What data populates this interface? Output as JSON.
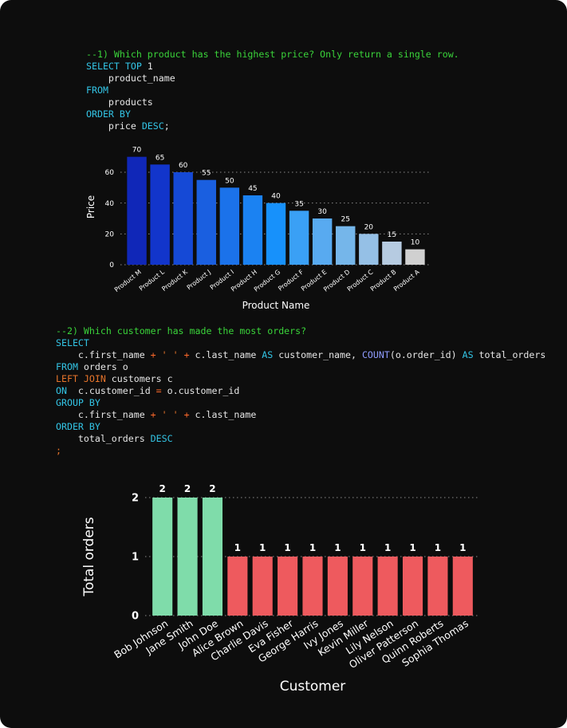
{
  "code_block_1": {
    "lines": [
      [
        {
          "t": "--1) Which product has the highest price? Only return a single row.",
          "c": "cm"
        }
      ],
      [
        {
          "t": "SELECT TOP ",
          "c": "kw"
        },
        {
          "t": "1",
          "c": "id"
        }
      ],
      [
        {
          "t": "    product_name",
          "c": "id"
        }
      ],
      [
        {
          "t": "FROM",
          "c": "kw"
        }
      ],
      [
        {
          "t": "    products",
          "c": "id"
        }
      ],
      [
        {
          "t": "ORDER BY",
          "c": "kw"
        }
      ],
      [
        {
          "t": "    price ",
          "c": "id"
        },
        {
          "t": "DESC",
          "c": "kw"
        },
        {
          "t": ";",
          "c": "id"
        }
      ]
    ]
  },
  "code_block_2": {
    "lines": [
      [
        {
          "t": "--2) Which customer has made the most orders?",
          "c": "cm"
        }
      ],
      [
        {
          "t": "SELECT",
          "c": "kw"
        }
      ],
      [
        {
          "t": "    c.first_name ",
          "c": "id"
        },
        {
          "t": "+",
          "c": "op"
        },
        {
          "t": " ' ' ",
          "c": "st"
        },
        {
          "t": "+",
          "c": "op"
        },
        {
          "t": " c.last_name ",
          "c": "id"
        },
        {
          "t": "AS",
          "c": "kw"
        },
        {
          "t": " customer_name, ",
          "c": "id"
        },
        {
          "t": "COUNT",
          "c": "fn"
        },
        {
          "t": "(o.order_id) ",
          "c": "id"
        },
        {
          "t": "AS",
          "c": "kw"
        },
        {
          "t": " total_orders",
          "c": "id"
        }
      ],
      [
        {
          "t": "FROM",
          "c": "kw"
        },
        {
          "t": " orders o",
          "c": "id"
        }
      ],
      [
        {
          "t": "LEFT JOIN",
          "c": "st"
        },
        {
          "t": " customers c",
          "c": "id"
        }
      ],
      [
        {
          "t": "ON",
          "c": "kw"
        },
        {
          "t": "  c.customer_id ",
          "c": "id"
        },
        {
          "t": "=",
          "c": "op"
        },
        {
          "t": " o.customer_id",
          "c": "id"
        }
      ],
      [
        {
          "t": "GROUP BY",
          "c": "kw"
        }
      ],
      [
        {
          "t": "    c.first_name ",
          "c": "id"
        },
        {
          "t": "+",
          "c": "op"
        },
        {
          "t": " ' ' ",
          "c": "st"
        },
        {
          "t": "+",
          "c": "op"
        },
        {
          "t": " c.last_name",
          "c": "id"
        }
      ],
      [
        {
          "t": "ORDER BY",
          "c": "kw"
        }
      ],
      [
        {
          "t": "    total_orders ",
          "c": "id"
        },
        {
          "t": "DESC",
          "c": "kw"
        }
      ],
      [
        {
          "t": ";",
          "c": "st"
        }
      ]
    ]
  },
  "chart_data": [
    {
      "type": "bar",
      "categories": [
        "Product M",
        "Product L",
        "Product K",
        "Product J",
        "Product I",
        "Product H",
        "Product G",
        "Product F",
        "Product E",
        "Product D",
        "Product C",
        "Product B",
        "Product A"
      ],
      "values": [
        70,
        65,
        60,
        55,
        50,
        45,
        40,
        35,
        30,
        25,
        20,
        15,
        10
      ],
      "colors": [
        "#1027b8",
        "#1235cb",
        "#1549d6",
        "#1a5fe0",
        "#1b72ea",
        "#1b82f2",
        "#1791fb",
        "#3aa0f5",
        "#58aaf0",
        "#75b6ea",
        "#95c0e6",
        "#b6cbe1",
        "#d0d0d0"
      ],
      "xlabel": "Product Name",
      "ylabel": "Price",
      "yticks": [
        0,
        20,
        40,
        60
      ],
      "ylim": [
        0,
        75
      ],
      "grid": "dotted horizontal",
      "data_labels": true
    },
    {
      "type": "bar",
      "categories": [
        "Bob Johnson",
        "Jane Smith",
        "John Doe",
        "Alice Brown",
        "Charlie Davis",
        "Eva Fisher",
        "George Harris",
        "Ivy Jones",
        "Kevin Miller",
        "Lily Nelson",
        "Oliver Patterson",
        "Quinn Roberts",
        "Sophia Thomas"
      ],
      "values": [
        2,
        2,
        2,
        1,
        1,
        1,
        1,
        1,
        1,
        1,
        1,
        1,
        1
      ],
      "colors": [
        "#7fdcaa",
        "#7fdcaa",
        "#7fdcaa",
        "#ee5a5e",
        "#ee5a5e",
        "#ee5a5e",
        "#ee5a5e",
        "#ee5a5e",
        "#ee5a5e",
        "#ee5a5e",
        "#ee5a5e",
        "#ee5a5e",
        "#ee5a5e"
      ],
      "xlabel": "Customer",
      "ylabel": "Total orders",
      "yticks": [
        0,
        1,
        2
      ],
      "ylim": [
        0,
        2
      ],
      "grid": "dotted horizontal",
      "data_labels": true
    }
  ]
}
